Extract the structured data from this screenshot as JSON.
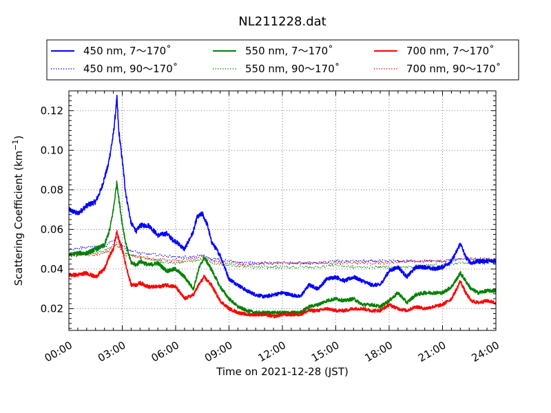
{
  "chart_data": {
    "type": "line",
    "title": "NL211228.dat",
    "xlabel": "Time on 2021-12-28 (JST)",
    "ylabel_main": "Scattering Coefficient (km",
    "ylabel_sup": "−1",
    "ylabel_end": ")",
    "x_unit": "hours (JST)",
    "xlim": [
      0,
      24
    ],
    "ylim": [
      0.009,
      0.13
    ],
    "x_ticks": [
      0,
      3,
      6,
      9,
      12,
      15,
      18,
      21,
      24
    ],
    "x_tick_labels": [
      "00:00",
      "03:00",
      "06:00",
      "09:00",
      "12:00",
      "15:00",
      "18:00",
      "21:00",
      "24:00"
    ],
    "y_ticks": [
      0.02,
      0.04,
      0.06,
      0.08,
      0.1,
      0.12
    ],
    "y_tick_labels": [
      "0.02",
      "0.04",
      "0.06",
      "0.08",
      "0.10",
      "0.12"
    ],
    "grid": true,
    "legend_position": "top",
    "series": [
      {
        "name": "450 nm, 7～170˚",
        "color": "#0000ff",
        "style": "solid",
        "x": [
          0,
          0.5,
          1,
          1.5,
          1.8,
          2.2,
          2.5,
          2.7,
          2.8,
          3.0,
          3.2,
          3.5,
          3.8,
          4.0,
          4.5,
          5,
          5.5,
          5.8,
          6,
          6.5,
          7,
          7.2,
          7.5,
          7.8,
          8,
          8.5,
          9,
          9.5,
          10,
          10.5,
          11,
          11.5,
          12,
          12.5,
          13,
          13.5,
          14,
          14.5,
          15,
          15.5,
          16,
          16.5,
          17,
          17.5,
          18,
          18.5,
          19,
          19.5,
          20,
          20.5,
          21,
          21.5,
          21.8,
          22,
          22.3,
          22.6,
          23,
          23.5,
          24
        ],
        "y": [
          0.07,
          0.068,
          0.072,
          0.074,
          0.08,
          0.092,
          0.108,
          0.126,
          0.11,
          0.095,
          0.078,
          0.063,
          0.059,
          0.062,
          0.062,
          0.057,
          0.058,
          0.055,
          0.054,
          0.05,
          0.059,
          0.066,
          0.068,
          0.062,
          0.054,
          0.047,
          0.035,
          0.032,
          0.029,
          0.027,
          0.026,
          0.027,
          0.028,
          0.027,
          0.026,
          0.032,
          0.03,
          0.035,
          0.036,
          0.034,
          0.036,
          0.034,
          0.032,
          0.032,
          0.039,
          0.041,
          0.036,
          0.041,
          0.041,
          0.04,
          0.041,
          0.044,
          0.049,
          0.053,
          0.046,
          0.043,
          0.044,
          0.044,
          0.044
        ]
      },
      {
        "name": "450 nm, 90～170˚",
        "color": "#0000ff",
        "style": "dotted",
        "x": [
          0,
          1,
          2,
          2.7,
          3.2,
          4,
          5,
          6,
          7,
          7.5,
          8,
          9,
          10,
          11,
          12,
          13,
          14,
          15,
          16,
          17,
          18,
          19,
          20,
          21,
          22,
          23,
          24
        ],
        "y": [
          0.05,
          0.051,
          0.051,
          0.056,
          0.05,
          0.048,
          0.047,
          0.046,
          0.046,
          0.047,
          0.045,
          0.044,
          0.043,
          0.043,
          0.043,
          0.043,
          0.043,
          0.044,
          0.044,
          0.044,
          0.044,
          0.044,
          0.044,
          0.044,
          0.045,
          0.045,
          0.045
        ]
      },
      {
        "name": "550 nm, 7～170˚",
        "color": "#008000",
        "style": "solid",
        "x": [
          0,
          0.5,
          1,
          1.5,
          2,
          2.3,
          2.5,
          2.7,
          2.8,
          3.0,
          3.2,
          3.5,
          3.8,
          4,
          4.5,
          5,
          5.5,
          6,
          6.5,
          7,
          7.3,
          7.6,
          8,
          8.5,
          9,
          9.5,
          10,
          10.5,
          11,
          11.5,
          12,
          12.5,
          13,
          13.5,
          14,
          14.5,
          15,
          15.5,
          16,
          16.5,
          17,
          17.5,
          18,
          18.5,
          19,
          19.5,
          20,
          20.5,
          21,
          21.5,
          21.8,
          22,
          22.3,
          22.6,
          23,
          23.5,
          24
        ],
        "y": [
          0.047,
          0.048,
          0.048,
          0.05,
          0.052,
          0.06,
          0.07,
          0.084,
          0.076,
          0.063,
          0.053,
          0.043,
          0.042,
          0.044,
          0.042,
          0.043,
          0.039,
          0.04,
          0.036,
          0.03,
          0.04,
          0.046,
          0.04,
          0.031,
          0.025,
          0.021,
          0.019,
          0.018,
          0.018,
          0.018,
          0.018,
          0.018,
          0.018,
          0.021,
          0.022,
          0.024,
          0.025,
          0.024,
          0.025,
          0.022,
          0.022,
          0.021,
          0.024,
          0.028,
          0.023,
          0.027,
          0.028,
          0.028,
          0.028,
          0.031,
          0.035,
          0.038,
          0.034,
          0.03,
          0.028,
          0.029,
          0.029
        ]
      },
      {
        "name": "550 nm, 90～170˚",
        "color": "#008000",
        "style": "dotted",
        "x": [
          0,
          1,
          2,
          2.7,
          3.2,
          4,
          5,
          6,
          7,
          7.5,
          8,
          9,
          10,
          11,
          12,
          13,
          14,
          15,
          16,
          17,
          18,
          19,
          20,
          21,
          22,
          23,
          24
        ],
        "y": [
          0.048,
          0.048,
          0.049,
          0.053,
          0.048,
          0.046,
          0.044,
          0.043,
          0.044,
          0.045,
          0.043,
          0.042,
          0.041,
          0.041,
          0.041,
          0.041,
          0.041,
          0.042,
          0.041,
          0.041,
          0.041,
          0.041,
          0.042,
          0.042,
          0.043,
          0.043,
          0.043
        ]
      },
      {
        "name": "700 nm, 7～170˚",
        "color": "#ff0000",
        "style": "solid",
        "x": [
          0,
          0.5,
          1,
          1.5,
          2,
          2.3,
          2.5,
          2.7,
          2.8,
          3.0,
          3.2,
          3.5,
          3.8,
          4,
          4.5,
          5,
          5.5,
          6,
          6.5,
          7,
          7.3,
          7.6,
          8,
          8.5,
          9,
          9.5,
          10,
          10.5,
          11,
          11.5,
          12,
          12.5,
          13,
          13.5,
          14,
          14.5,
          15,
          15.5,
          16,
          16.5,
          17,
          17.5,
          18,
          18.5,
          19,
          19.5,
          20,
          20.5,
          21,
          21.5,
          21.8,
          22,
          22.3,
          22.6,
          23,
          23.5,
          24
        ],
        "y": [
          0.037,
          0.037,
          0.038,
          0.036,
          0.04,
          0.047,
          0.05,
          0.059,
          0.055,
          0.05,
          0.042,
          0.032,
          0.032,
          0.033,
          0.031,
          0.031,
          0.032,
          0.031,
          0.025,
          0.027,
          0.032,
          0.036,
          0.032,
          0.024,
          0.02,
          0.018,
          0.017,
          0.017,
          0.017,
          0.016,
          0.017,
          0.017,
          0.017,
          0.019,
          0.019,
          0.02,
          0.019,
          0.019,
          0.02,
          0.02,
          0.019,
          0.019,
          0.022,
          0.02,
          0.019,
          0.021,
          0.02,
          0.021,
          0.022,
          0.025,
          0.03,
          0.034,
          0.028,
          0.024,
          0.023,
          0.024,
          0.023
        ]
      },
      {
        "name": "700 nm, 90～170˚",
        "color": "#ff0000",
        "style": "dotted",
        "x": [
          0,
          1,
          2,
          2.7,
          3.2,
          4,
          5,
          6,
          7,
          7.5,
          8,
          9,
          10,
          11,
          12,
          13,
          14,
          15,
          16,
          17,
          18,
          19,
          20,
          21,
          22,
          23,
          24
        ],
        "y": [
          0.047,
          0.047,
          0.048,
          0.052,
          0.047,
          0.046,
          0.045,
          0.044,
          0.045,
          0.046,
          0.044,
          0.043,
          0.042,
          0.043,
          0.043,
          0.043,
          0.043,
          0.043,
          0.043,
          0.043,
          0.043,
          0.044,
          0.044,
          0.044,
          0.045,
          0.045,
          0.045
        ]
      }
    ]
  }
}
